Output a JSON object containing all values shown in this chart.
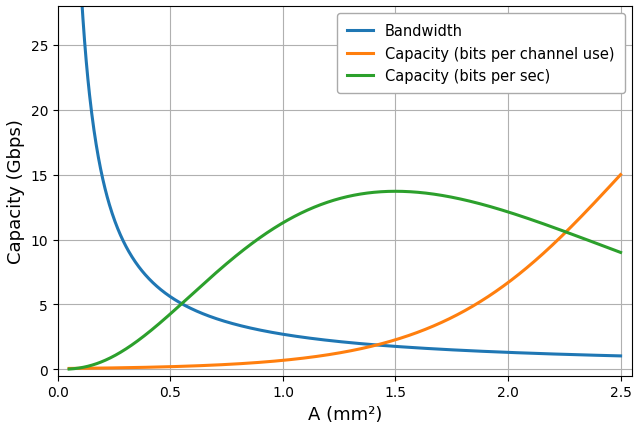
{
  "x_start": 0.05,
  "x_end": 2.5,
  "n_points": 1000,
  "bw_a": 2.7,
  "bw_n": 1.05,
  "orange_scale": 18.0,
  "orange_midpoint": 2.3,
  "orange_steepness": 1.8,
  "green_G": 52.0,
  "green_a": 2.3,
  "green_b": 1.533,
  "ylim": [
    -0.5,
    28
  ],
  "xlim": [
    0.0,
    2.55
  ],
  "xticks": [
    0.0,
    0.5,
    1.0,
    1.5,
    2.0,
    2.5
  ],
  "yticks": [
    0,
    5,
    10,
    15,
    20,
    25
  ],
  "xlabel": "A (mm²)",
  "ylabel": "Capacity (Gbps)",
  "legend_labels": [
    "Bandwidth",
    "Capacity (bits per channel use)",
    "Capacity (bits per sec)"
  ],
  "line_colors": [
    "#1f77b4",
    "#ff7f0e",
    "#2ca02c"
  ],
  "line_width": 2.2,
  "grid_color": "#b0b0b0",
  "background_color": "#ffffff",
  "fig_width": 6.4,
  "fig_height": 4.31,
  "dpi": 100
}
